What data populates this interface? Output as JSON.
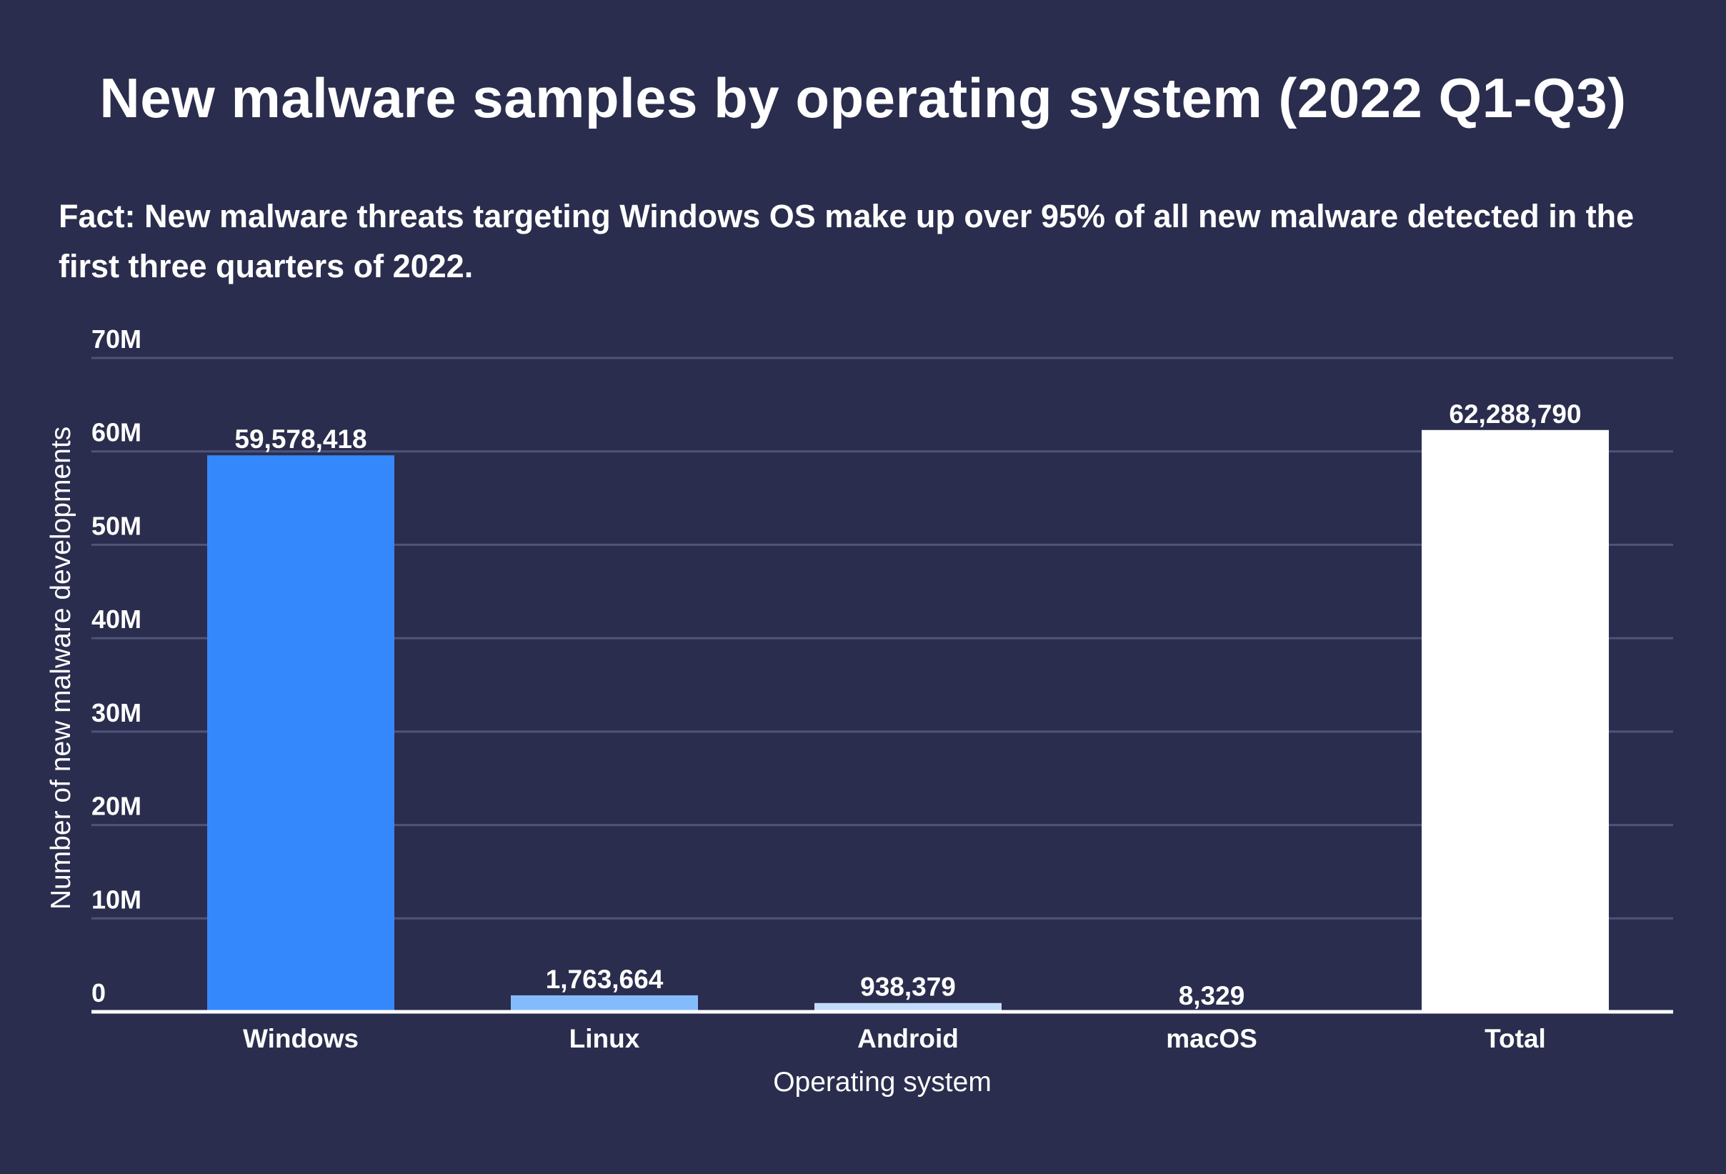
{
  "chart_data": {
    "type": "bar",
    "title": "New malware samples by operating system (2022 Q1-Q3)",
    "subtitle": "Fact: New malware threats targeting Windows OS make up over 95% of all new malware detected in the first three quarters of 2022.",
    "xlabel": "Operating system",
    "ylabel": "Number of new malware developments",
    "categories": [
      "Windows",
      "Linux",
      "Android",
      "macOS",
      "Total"
    ],
    "values": [
      59578418,
      1763664,
      938379,
      8329,
      62288790
    ],
    "value_labels": [
      "59,578,418",
      "1,763,664",
      "938,379",
      "8,329",
      "62,288,790"
    ],
    "bar_colors": [
      "#3588fc",
      "#84bcfb",
      "#c3dcfb",
      "#e8f1fd",
      "#ffffff"
    ],
    "ylim": [
      0,
      70000000
    ],
    "yticks": [
      0,
      10000000,
      20000000,
      30000000,
      40000000,
      50000000,
      60000000,
      70000000
    ],
    "ytick_labels": [
      "0",
      "10M",
      "20M",
      "30M",
      "40M",
      "50M",
      "60M",
      "70M"
    ],
    "grid": true,
    "legend": "none"
  },
  "colors": {
    "background": "#2a2d4d",
    "gridline": "#50547a",
    "text": "#ffffff"
  }
}
